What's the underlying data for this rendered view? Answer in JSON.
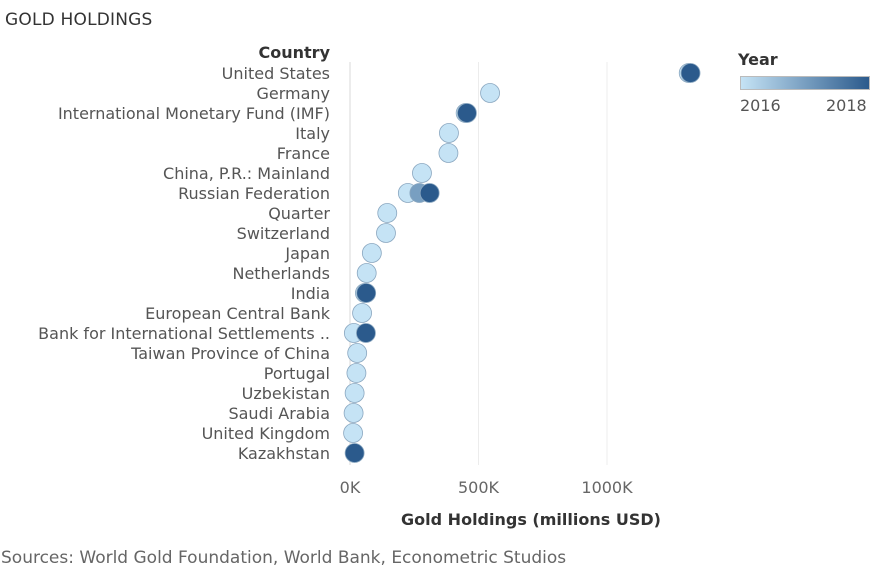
{
  "chart_data": {
    "type": "scatter",
    "title": "GOLD HOLDINGS",
    "row_header": "Country",
    "xlabel": "Gold Holdings (millions USD)",
    "xlim": [
      0,
      1400000
    ],
    "x_ticks": [
      0,
      500000,
      1000000
    ],
    "x_tick_labels": [
      "0K",
      "500K",
      "1000K"
    ],
    "grid": "vertical",
    "color_legend": {
      "title": "Year",
      "min_label": "2016",
      "max_label": "2018",
      "min_value": 2016,
      "max_value": 2018,
      "placement": "top-right",
      "color_low": "#c5e3f5",
      "color_high": "#2b5a8c"
    },
    "categories": [
      "United States",
      "Germany",
      "International Monetary Fund (IMF)",
      "Italy",
      "France",
      "China, P.R.: Mainland",
      "Russian Federation",
      "Quarter",
      "Switzerland",
      "Japan",
      "Netherlands",
      "India",
      "European Central Bank",
      "Bank for International Settlements ..",
      "Taiwan Province of China",
      "Portugal",
      "Uzbekistan",
      "Saudi Arabia",
      "United Kingdom",
      "Kazakhstan"
    ],
    "points": [
      {
        "category": "United States",
        "year": 2018,
        "value": 1325000
      },
      {
        "category": "United States",
        "year": 2016,
        "value": 1318000
      },
      {
        "category": "Germany",
        "year": 2016,
        "value": 545000
      },
      {
        "category": "International Monetary Fund (IMF)",
        "year": 2018,
        "value": 455000
      },
      {
        "category": "International Monetary Fund (IMF)",
        "year": 2016,
        "value": 450000
      },
      {
        "category": "Italy",
        "year": 2016,
        "value": 385000
      },
      {
        "category": "France",
        "year": 2016,
        "value": 383000
      },
      {
        "category": "China, P.R.: Mainland",
        "year": 2016,
        "value": 280000
      },
      {
        "category": "Russian Federation",
        "year": 2018,
        "value": 310000
      },
      {
        "category": "Russian Federation",
        "year": 2017,
        "value": 270000
      },
      {
        "category": "Russian Federation",
        "year": 2016,
        "value": 225000
      },
      {
        "category": "Quarter",
        "year": 2016,
        "value": 145000
      },
      {
        "category": "Switzerland",
        "year": 2016,
        "value": 140000
      },
      {
        "category": "Japan",
        "year": 2016,
        "value": 85000
      },
      {
        "category": "Netherlands",
        "year": 2016,
        "value": 65000
      },
      {
        "category": "India",
        "year": 2018,
        "value": 63000
      },
      {
        "category": "India",
        "year": 2016,
        "value": 58000
      },
      {
        "category": "European Central Bank",
        "year": 2016,
        "value": 47000
      },
      {
        "category": "Bank for International Settlements ..",
        "year": 2018,
        "value": 62000
      },
      {
        "category": "Bank for International Settlements ..",
        "year": 2016,
        "value": 15000
      },
      {
        "category": "Taiwan Province of China",
        "year": 2016,
        "value": 28000
      },
      {
        "category": "Portugal",
        "year": 2016,
        "value": 25000
      },
      {
        "category": "Uzbekistan",
        "year": 2016,
        "value": 18000
      },
      {
        "category": "Saudi Arabia",
        "year": 2016,
        "value": 14000
      },
      {
        "category": "United Kingdom",
        "year": 2016,
        "value": 12000
      },
      {
        "category": "Kazakhstan",
        "year": 2018,
        "value": 18000
      }
    ]
  },
  "source_note": "Sources: World Gold Foundation, World Bank, Econometric Studios"
}
